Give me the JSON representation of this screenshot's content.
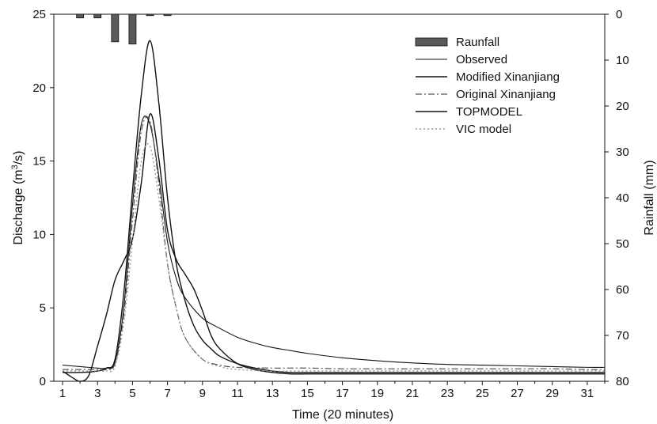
{
  "chart_data": {
    "type": "line",
    "xlabel": "Time (20 minutes)",
    "ylabel_left": "Discharge (m",
    "ylabel_left_sup": "3",
    "ylabel_left_end": "/s)",
    "ylabel_right": "Rainfall (mm)",
    "xlim": [
      0.5,
      32
    ],
    "ylim_left": [
      0,
      25
    ],
    "ylim_right": [
      0,
      80
    ],
    "right_axis_inverted": true,
    "x_ticks": [
      1,
      3,
      5,
      7,
      9,
      11,
      13,
      15,
      17,
      19,
      21,
      23,
      25,
      27,
      29,
      31
    ],
    "x_tick_labels": [
      "1",
      "3",
      "5",
      "7",
      "9",
      "11",
      "13",
      "15",
      "17",
      "19",
      "21",
      "23",
      "25",
      "27",
      "29",
      "31"
    ],
    "y_left_ticks": [
      0,
      5,
      10,
      15,
      20,
      25
    ],
    "y_left_tick_labels": [
      "0",
      "5",
      "10",
      "15",
      "20",
      "25"
    ],
    "y_right_ticks": [
      0,
      10,
      20,
      30,
      40,
      50,
      60,
      70,
      80
    ],
    "y_right_tick_labels": [
      "0",
      "10",
      "20",
      "30",
      "40",
      "50",
      "60",
      "70",
      "80"
    ],
    "grid": false,
    "legend_position": "top-right",
    "rainfall": {
      "name": "Raunfall",
      "color": "#5a5a5a",
      "x": [
        2,
        3,
        4,
        5,
        6,
        7
      ],
      "values": [
        0.8,
        0.8,
        6,
        6.5,
        0.3,
        0.3
      ]
    },
    "series": [
      {
        "name": "Observed",
        "color": "#111111",
        "dash": "",
        "width": 1.1,
        "x": [
          1,
          2,
          3,
          3.5,
          4,
          4.5,
          5,
          5.5,
          6,
          6.5,
          7,
          7.5,
          8,
          9,
          10,
          11,
          12,
          13,
          14,
          15,
          17,
          19,
          21,
          23,
          25,
          27,
          29,
          31,
          32
        ],
        "values": [
          1.1,
          1.0,
          0.9,
          0.9,
          1.3,
          5.0,
          12.0,
          17.5,
          17.5,
          14.0,
          9.5,
          7.0,
          5.7,
          4.3,
          3.6,
          3.0,
          2.6,
          2.3,
          2.1,
          1.9,
          1.6,
          1.4,
          1.25,
          1.15,
          1.1,
          1.05,
          1.0,
          0.95,
          0.95
        ]
      },
      {
        "name": "Modified Xinanjiang",
        "color": "#111111",
        "dash": "",
        "width": 1.4,
        "x": [
          1,
          1.5,
          2,
          2.5,
          3,
          3.5,
          4,
          4.5,
          5,
          5.5,
          6,
          6.5,
          7,
          7.5,
          8,
          8.5,
          9,
          9.5,
          10,
          11,
          12,
          13,
          14,
          15,
          17,
          19,
          21,
          23,
          25,
          27,
          29,
          31,
          32
        ],
        "values": [
          0.7,
          0.3,
          0.0,
          0.4,
          2.4,
          4.5,
          6.9,
          8.2,
          9.7,
          13.5,
          18.2,
          15.2,
          10.3,
          8.3,
          7.3,
          6.3,
          4.8,
          3.1,
          2.2,
          1.2,
          0.8,
          0.6,
          0.5,
          0.5,
          0.5,
          0.5,
          0.5,
          0.5,
          0.5,
          0.5,
          0.5,
          0.5,
          0.5
        ]
      },
      {
        "name": "Original Xinanjiang",
        "color": "#555555",
        "dash": "8,3,2,3",
        "width": 1.2,
        "x": [
          1,
          2,
          3,
          3.5,
          4,
          4.5,
          5,
          5.5,
          6,
          6.5,
          7,
          7.5,
          8,
          9,
          10,
          11,
          13,
          15,
          17,
          19,
          21,
          23,
          25,
          27,
          29,
          31,
          32
        ],
        "values": [
          0.8,
          0.8,
          0.8,
          0.8,
          1.2,
          4.5,
          11.0,
          17.0,
          17.7,
          13.5,
          8.0,
          5.0,
          3.0,
          1.5,
          1.1,
          0.95,
          0.9,
          0.9,
          0.85,
          0.85,
          0.85,
          0.85,
          0.85,
          0.85,
          0.85,
          0.8,
          0.8
        ]
      },
      {
        "name": "TOPMODEL",
        "color": "#111111",
        "dash": "",
        "width": 1.4,
        "x": [
          1,
          2,
          3,
          3.5,
          4,
          4.5,
          5,
          5.5,
          6,
          6.5,
          7,
          7.5,
          8,
          8.5,
          9,
          9.5,
          10,
          11,
          12,
          13,
          14,
          15,
          17,
          19,
          21,
          23,
          25,
          27,
          29,
          31,
          32
        ],
        "values": [
          0.6,
          0.6,
          0.7,
          0.9,
          1.5,
          6.0,
          13.0,
          19.5,
          23.2,
          19.0,
          12.5,
          8.0,
          5.5,
          3.8,
          2.8,
          2.2,
          1.7,
          1.2,
          0.9,
          0.7,
          0.6,
          0.6,
          0.6,
          0.6,
          0.6,
          0.6,
          0.6,
          0.6,
          0.6,
          0.6,
          0.6
        ]
      },
      {
        "name": "VIC model",
        "color": "#999999",
        "dash": "2,3",
        "width": 1.4,
        "x": [
          1,
          2,
          3,
          3.5,
          4,
          4.5,
          5,
          5.5,
          6,
          6.5,
          7,
          7.5,
          8,
          9,
          10,
          11,
          13,
          15,
          17,
          19,
          21,
          23,
          25,
          27,
          29,
          31,
          32
        ],
        "values": [
          0.7,
          0.7,
          0.7,
          0.7,
          1.0,
          4.0,
          9.5,
          15.0,
          16.0,
          12.5,
          8.0,
          5.0,
          3.0,
          1.5,
          1.0,
          0.8,
          0.7,
          0.7,
          0.7,
          0.7,
          0.7,
          0.7,
          0.7,
          0.7,
          0.7,
          0.7,
          0.7
        ]
      }
    ]
  }
}
